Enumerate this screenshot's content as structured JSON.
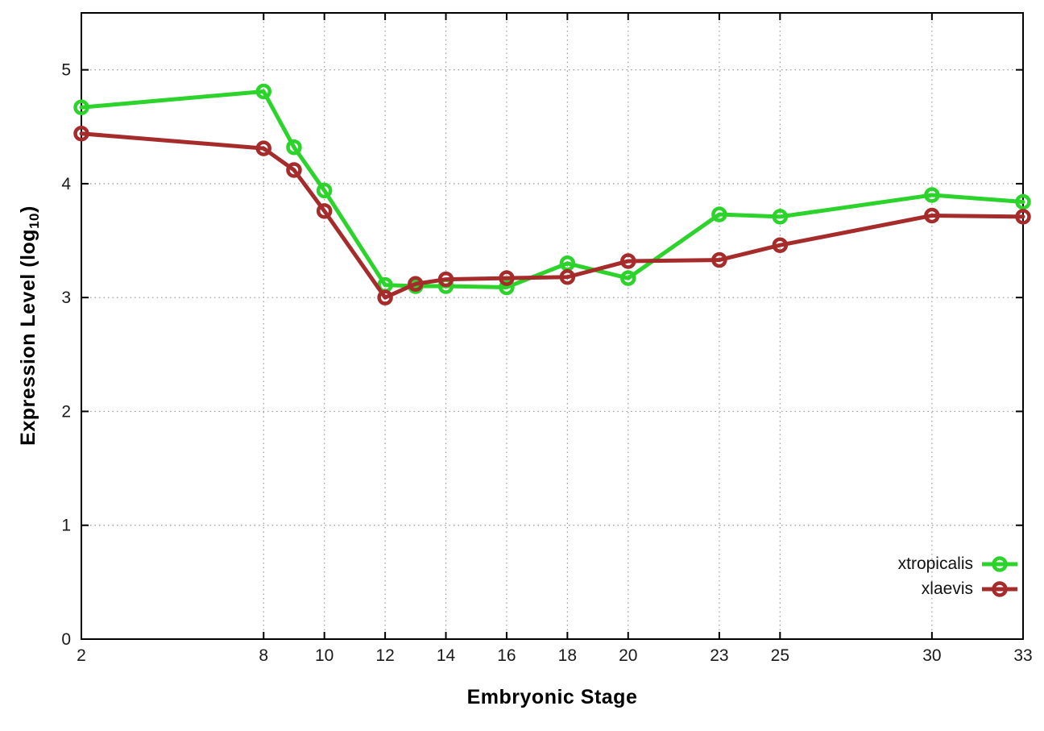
{
  "page": {
    "background": "#ffffff"
  },
  "axes": {
    "x_title": "Embryonic Stage",
    "y_title_prefix": "Expression Level (log",
    "y_title_sub": "10",
    "y_title_suffix": ")"
  },
  "chart_data": {
    "type": "line",
    "title": "",
    "xlabel": "Embryonic Stage",
    "ylabel": "Expression Level (log10)",
    "xlim": [
      2,
      33
    ],
    "ylim": [
      0,
      5.5
    ],
    "xticks": [
      2,
      8,
      10,
      12,
      14,
      16,
      18,
      20,
      23,
      25,
      30,
      33
    ],
    "yticks": [
      0,
      1,
      2,
      3,
      4,
      5
    ],
    "grid": true,
    "gridline_color": "#9a9a9a",
    "axis_color": "#000000",
    "tick_label_color": "#1a1a1a",
    "marker": "open-circle",
    "legend_position": "bottom-right",
    "x": [
      2,
      8,
      9,
      10,
      12,
      13,
      14,
      16,
      18,
      20,
      23,
      25,
      30,
      33
    ],
    "series": [
      {
        "name": "xtropicalis",
        "color": "#2bd32b",
        "values": [
          4.67,
          4.81,
          4.32,
          3.94,
          3.11,
          3.1,
          3.1,
          3.09,
          3.3,
          3.17,
          3.73,
          3.71,
          3.9,
          3.84
        ]
      },
      {
        "name": "xlaevis",
        "color": "#a62c2c",
        "values": [
          4.44,
          4.31,
          4.12,
          3.76,
          3.0,
          3.12,
          3.16,
          3.17,
          3.18,
          3.32,
          3.33,
          3.46,
          3.72,
          3.71
        ]
      }
    ]
  }
}
